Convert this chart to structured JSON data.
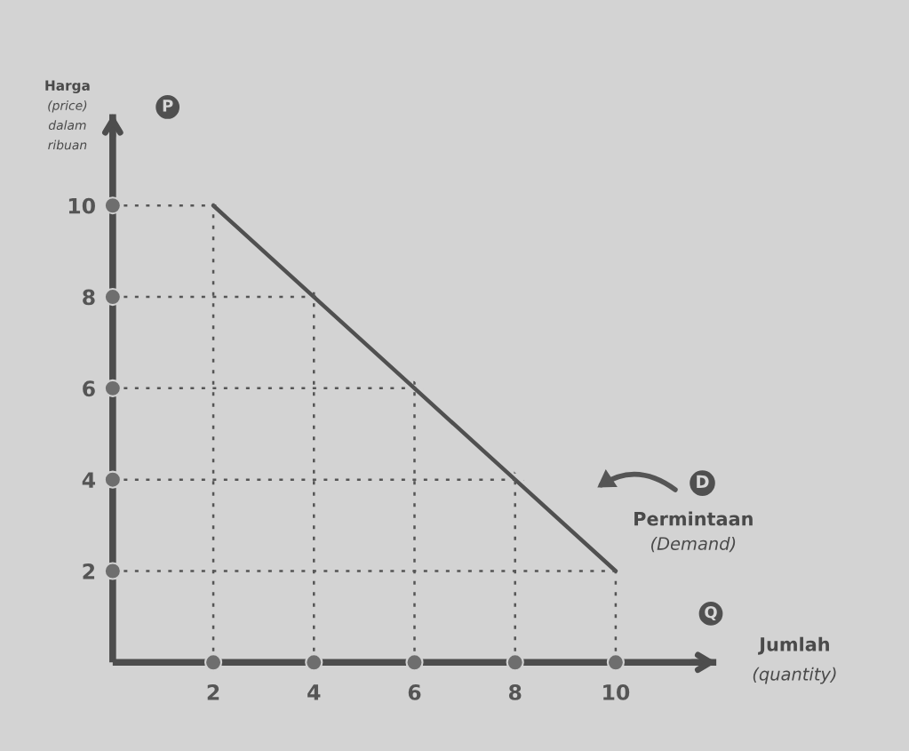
{
  "chart_data": {
    "type": "line",
    "ylabel": "Harga\n(price)\ndalam\nribuan",
    "xlabel": "Jumlah\n(quantity)",
    "x": [
      2,
      4,
      6,
      8,
      10
    ],
    "series": [
      {
        "color": "#505050",
        "values": [
          10,
          8,
          6,
          4,
          2
        ]
      }
    ],
    "xlim": [
      0,
      12
    ],
    "ylim": [
      0,
      12
    ],
    "xticks": [
      2,
      4,
      6,
      8,
      10
    ],
    "yticks": [
      2,
      4,
      6,
      8,
      10
    ],
    "grid": true,
    "annotations": [
      "P",
      "Q",
      "D",
      "Permintaan\n(Demand)"
    ]
  }
}
